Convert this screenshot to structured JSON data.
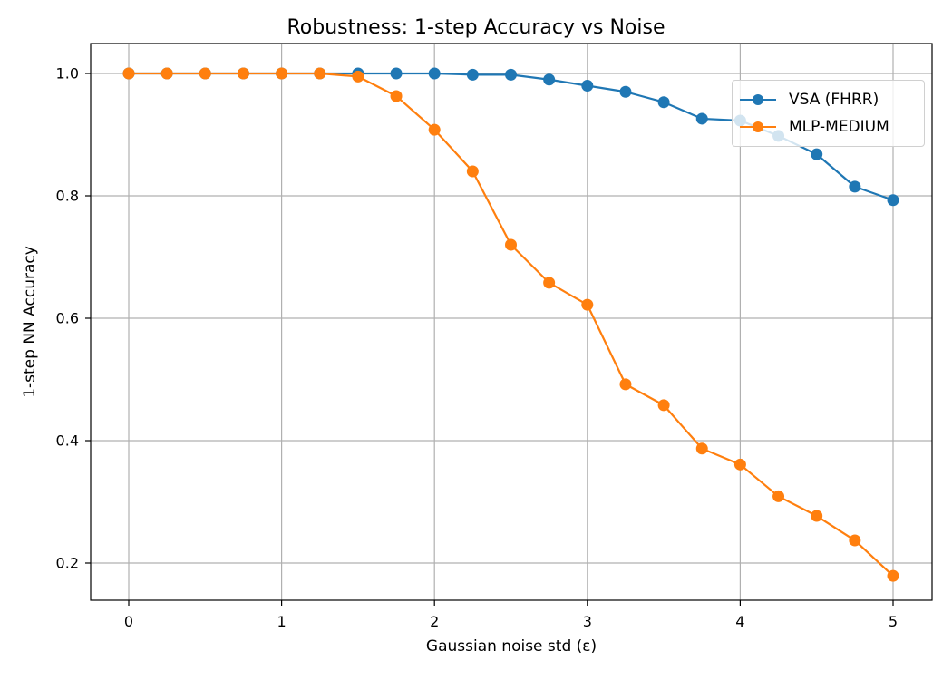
{
  "chart_data": {
    "type": "line",
    "title": "Robustness: 1-step Accuracy vs Noise",
    "xlabel": "Gaussian noise std (ε)",
    "ylabel": "1-step NN Accuracy",
    "x": [
      0,
      0.25,
      0.5,
      0.75,
      1.0,
      1.25,
      1.5,
      1.75,
      2.0,
      2.25,
      2.5,
      2.75,
      3.0,
      3.25,
      3.5,
      3.75,
      4.0,
      4.25,
      4.5,
      4.75,
      5.0
    ],
    "series": [
      {
        "name": "VSA (FHRR)",
        "color": "#1f77b4",
        "values": [
          1.0,
          1.0,
          1.0,
          1.0,
          1.0,
          1.0,
          1.0,
          1.0,
          1.0,
          0.998,
          0.998,
          0.99,
          0.98,
          0.97,
          0.953,
          0.926,
          0.923,
          0.898,
          0.868,
          0.815,
          0.793
        ]
      },
      {
        "name": "MLP-MEDIUM",
        "color": "#ff7f0e",
        "values": [
          1.0,
          1.0,
          1.0,
          1.0,
          1.0,
          1.0,
          0.995,
          0.963,
          0.908,
          0.84,
          0.72,
          0.658,
          0.622,
          0.492,
          0.458,
          0.387,
          0.361,
          0.309,
          0.277,
          0.237,
          0.179
        ]
      }
    ],
    "xticks": [
      "0",
      "1",
      "2",
      "3",
      "4",
      "5"
    ],
    "yticks": [
      "0.2",
      "0.4",
      "0.6",
      "0.8",
      "1.0"
    ],
    "xlim": [
      -0.25,
      5.25
    ],
    "ylim": [
      0.14,
      1.04
    ],
    "grid": true,
    "legend_position": "upper right"
  }
}
